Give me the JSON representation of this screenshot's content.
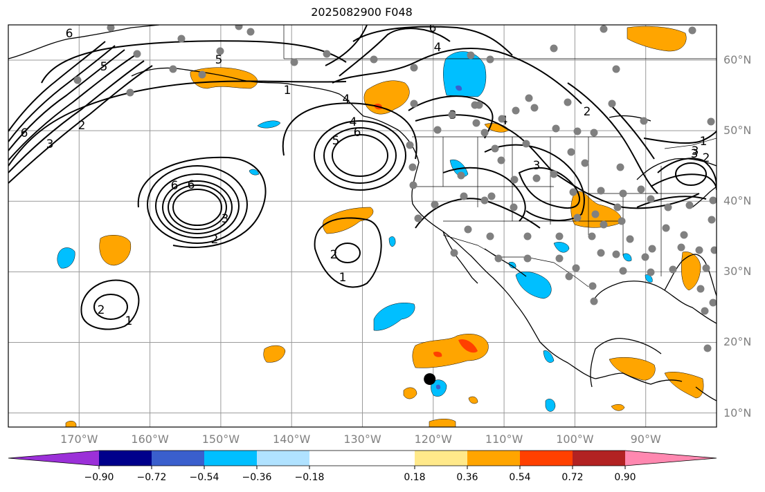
{
  "title": "2025082900 F048",
  "map": {
    "extent_lon": [
      -180,
      -80
    ],
    "extent_lat": [
      8,
      65
    ],
    "lat_labels": [
      "60°N",
      "50°N",
      "40°N",
      "30°N",
      "20°N",
      "10°N"
    ],
    "lat_values": [
      60,
      50,
      40,
      30,
      20,
      10
    ],
    "lon_labels": [
      "170°W",
      "160°W",
      "150°W",
      "140°W",
      "130°W",
      "120°W",
      "110°W",
      "100°W",
      "90°W"
    ],
    "lon_values": [
      -170,
      -160,
      -150,
      -140,
      -130,
      -120,
      -110,
      -100,
      -90
    ],
    "contour_labels": [
      "6",
      "5",
      "6",
      "5",
      "6",
      "4",
      "2",
      "3",
      "6",
      "1",
      "4",
      "5",
      "6",
      "6",
      "3",
      "2",
      "2",
      "1",
      "2",
      "1",
      "3",
      "4",
      "3",
      "3",
      "2",
      "1",
      "3",
      "2",
      "4"
    ],
    "marker": {
      "name": "storm-center",
      "lon": -120.5,
      "lat": 14.8
    }
  },
  "colorbar": {
    "colors": [
      "#9b30d8",
      "#00008b",
      "#3a5fcd",
      "#00bfff",
      "#b0e2ff",
      "#ffffff",
      "#ffe98a",
      "#ffa500",
      "#ff4000",
      "#b22222",
      "#ff88b0"
    ],
    "tick_labels": [
      "−0.90",
      "−0.72",
      "−0.54",
      "−0.36",
      "−0.18",
      "0.18",
      "0.36",
      "0.54",
      "0.72",
      "0.90"
    ],
    "tick_values": [
      -0.9,
      -0.72,
      -0.54,
      -0.36,
      -0.18,
      0.18,
      0.36,
      0.54,
      0.72,
      0.9
    ]
  },
  "colors": {
    "grid": "#999999",
    "station_dot": "#808080",
    "positive_fill": "#ffa500",
    "strong_positive_fill": "#ff4000",
    "negative_fill": "#00bfff",
    "strong_negative_fill": "#3a5fcd"
  }
}
